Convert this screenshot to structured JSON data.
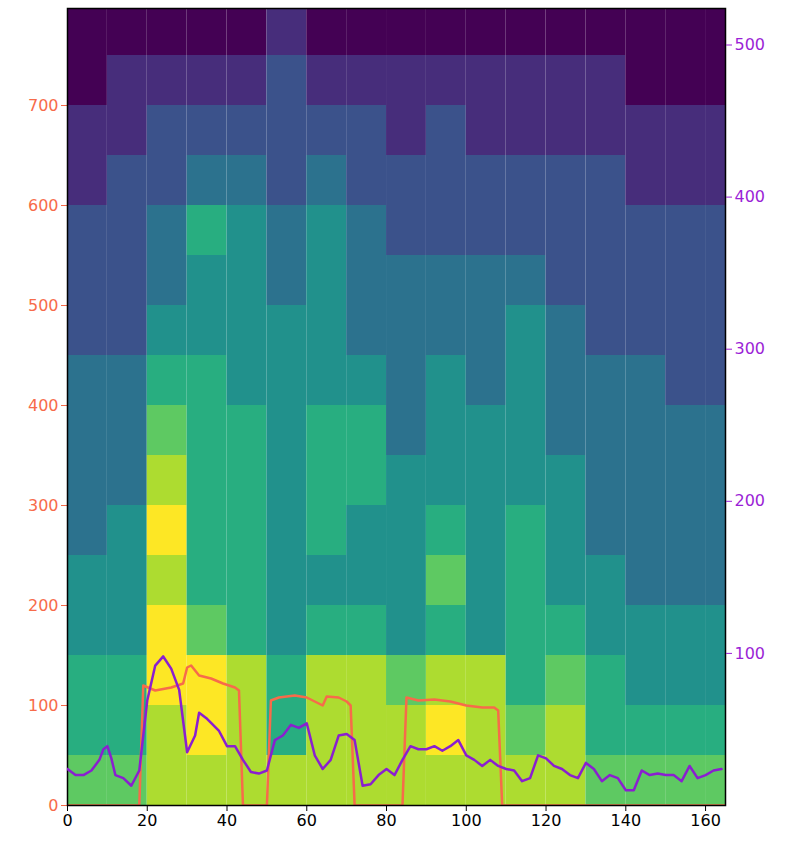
{
  "chart_data": {
    "type": "heatmap",
    "xlim": [
      0,
      165
    ],
    "xticks": [
      0,
      20,
      40,
      60,
      80,
      100,
      120,
      140,
      160
    ],
    "ylim": [
      0,
      797
    ],
    "yticks": [
      0,
      100,
      200,
      300,
      400,
      500,
      600,
      700
    ],
    "y2lim": [
      0,
      524
    ],
    "y2ticks": [
      100,
      200,
      300,
      400,
      500
    ],
    "cells": {
      "x": [
        0,
        10,
        20,
        30,
        40,
        50,
        60,
        70,
        80,
        90,
        100,
        110,
        120,
        130,
        140,
        150,
        160
      ],
      "y": [
        0,
        50,
        100,
        150,
        200,
        250,
        300,
        350,
        400,
        450,
        500,
        550,
        600,
        650,
        700,
        750
      ],
      "values": [
        [
          7,
          7,
          8,
          8,
          8,
          8,
          8,
          8,
          8,
          8,
          8,
          8,
          8,
          7,
          7,
          7,
          7
        ],
        [
          6,
          6,
          8,
          9,
          8,
          6,
          8,
          8,
          8,
          9,
          8,
          7,
          8,
          6,
          6,
          6,
          6
        ],
        [
          6,
          6,
          9,
          9,
          8,
          6,
          8,
          8,
          7,
          8,
          8,
          6,
          7,
          6,
          5,
          5,
          5
        ],
        [
          5,
          5,
          9,
          7,
          6,
          5,
          6,
          6,
          5,
          6,
          5,
          6,
          6,
          5,
          5,
          5,
          5
        ],
        [
          5,
          5,
          8,
          6,
          6,
          5,
          5,
          5,
          5,
          7,
          5,
          6,
          5,
          5,
          4,
          4,
          4
        ],
        [
          4,
          5,
          9,
          6,
          6,
          5,
          6,
          5,
          5,
          6,
          5,
          6,
          5,
          4,
          4,
          4,
          4
        ],
        [
          4,
          4,
          8,
          6,
          6,
          5,
          6,
          6,
          5,
          5,
          5,
          5,
          5,
          4,
          4,
          4,
          4
        ],
        [
          4,
          4,
          7,
          6,
          6,
          5,
          6,
          6,
          4,
          5,
          5,
          5,
          4,
          4,
          4,
          4,
          4
        ],
        [
          4,
          4,
          6,
          6,
          5,
          5,
          5,
          5,
          4,
          5,
          4,
          5,
          4,
          4,
          4,
          3,
          3
        ],
        [
          3,
          3,
          5,
          5,
          5,
          5,
          5,
          4,
          4,
          4,
          4,
          5,
          4,
          3,
          3,
          3,
          3
        ],
        [
          3,
          3,
          4,
          5,
          5,
          4,
          5,
          4,
          4,
          4,
          4,
          4,
          3,
          3,
          3,
          3,
          3
        ],
        [
          3,
          3,
          4,
          6,
          5,
          4,
          5,
          4,
          3,
          3,
          3,
          3,
          3,
          3,
          3,
          3,
          3
        ],
        [
          2,
          3,
          3,
          4,
          4,
          3,
          4,
          3,
          3,
          3,
          3,
          3,
          3,
          3,
          2,
          2,
          2
        ],
        [
          2,
          2,
          3,
          3,
          3,
          3,
          3,
          3,
          2,
          3,
          2,
          2,
          2,
          2,
          2,
          2,
          2
        ],
        [
          1,
          2,
          2,
          2,
          2,
          3,
          2,
          2,
          2,
          2,
          2,
          2,
          2,
          2,
          1,
          1,
          1
        ],
        [
          1,
          1,
          1,
          1,
          1,
          2,
          1,
          1,
          1,
          1,
          1,
          1,
          1,
          1,
          1,
          1,
          1
        ]
      ]
    },
    "series": [
      {
        "type": "line",
        "color": "#f76b4a",
        "x": [
          0,
          18,
          19,
          22,
          26,
          29,
          30,
          31,
          33,
          36,
          39,
          42,
          43,
          44,
          50,
          51,
          53,
          57,
          60,
          62,
          64,
          65,
          68,
          70,
          71,
          72,
          84,
          85,
          88,
          92,
          96,
          100,
          104,
          107,
          108,
          109,
          165
        ],
        "values": [
          0,
          0,
          120,
          115,
          118,
          122,
          138,
          140,
          130,
          127,
          122,
          118,
          115,
          0,
          0,
          105,
          108,
          110,
          108,
          104,
          100,
          109,
          108,
          104,
          100,
          0,
          0,
          108,
          105,
          106,
          104,
          100,
          98,
          98,
          95,
          0,
          0
        ]
      },
      {
        "type": "line",
        "color": "#8a1fd0",
        "axis": "y2",
        "x": [
          0,
          2,
          4,
          6,
          8,
          9,
          10,
          11,
          12,
          14,
          16,
          18,
          20,
          22,
          24,
          26,
          28,
          30,
          32,
          33,
          35,
          38,
          40,
          42,
          44,
          46,
          48,
          50,
          52,
          54,
          56,
          58,
          60,
          62,
          64,
          66,
          68,
          70,
          72,
          74,
          76,
          78,
          80,
          82,
          84,
          86,
          88,
          90,
          92,
          94,
          96,
          98,
          100,
          102,
          104,
          106,
          108,
          110,
          112,
          114,
          116,
          118,
          120,
          122,
          124,
          126,
          128,
          130,
          132,
          134,
          136,
          138,
          140,
          142,
          144,
          146,
          148,
          150,
          152,
          154,
          156,
          158,
          160,
          162,
          164
        ],
        "values": [
          24,
          20,
          20,
          23,
          30,
          37,
          39,
          31,
          20,
          18,
          13,
          23,
          69,
          92,
          98,
          90,
          76,
          35,
          46,
          61,
          57,
          49,
          39,
          39,
          30,
          22,
          21,
          23,
          43,
          46,
          53,
          51,
          54,
          33,
          24,
          30,
          46,
          47,
          43,
          13,
          14,
          20,
          24,
          20,
          30,
          39,
          37,
          37,
          39,
          36,
          39,
          43,
          33,
          30,
          26,
          30,
          26,
          24,
          23,
          16,
          18,
          33,
          31,
          26,
          24,
          20,
          18,
          28,
          24,
          16,
          20,
          18,
          10,
          10,
          23,
          20,
          21,
          20,
          20,
          16,
          26,
          18,
          20,
          23,
          24
        ]
      }
    ]
  }
}
